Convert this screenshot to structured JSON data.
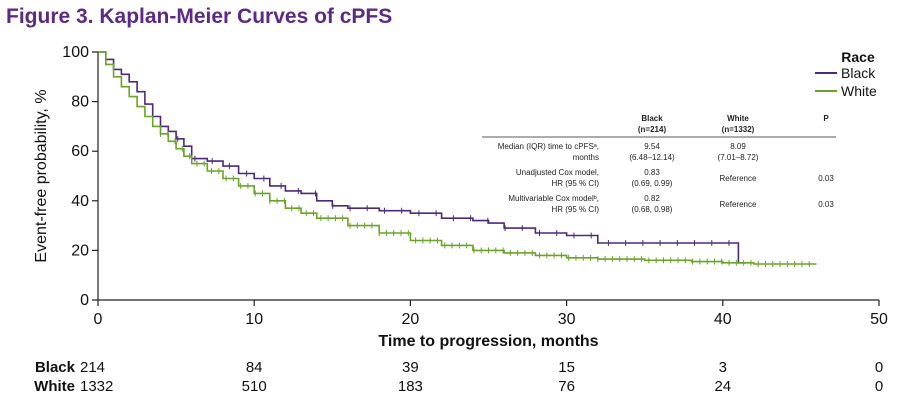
{
  "title": "Figure 3. Kaplan-Meier Curves of cPFS",
  "chart_data": {
    "type": "line",
    "title": "Figure 3. Kaplan-Meier Curves of cPFS",
    "xlabel": "Time to progression, months",
    "ylabel": "Event-free probability, %",
    "xlim": [
      0,
      50
    ],
    "ylim": [
      0,
      100
    ],
    "xticks": [
      0,
      10,
      20,
      30,
      40,
      50
    ],
    "yticks": [
      0,
      20,
      40,
      60,
      80,
      100
    ],
    "grid": false,
    "legend": {
      "title": "Race",
      "position": "top-right"
    },
    "series": [
      {
        "name": "Black",
        "color": "#4b2a7b",
        "x": [
          0,
          0.5,
          1,
          1.5,
          2,
          2.5,
          3,
          3.5,
          4,
          4.5,
          5,
          5.5,
          6,
          7,
          8,
          9,
          10,
          11,
          12,
          13,
          14,
          15,
          16,
          18,
          20,
          22,
          24,
          25,
          26,
          28,
          30,
          32,
          35,
          38,
          40,
          41,
          41.5
        ],
        "y": [
          100,
          97,
          93,
          91,
          88,
          84,
          79,
          74,
          70,
          68,
          65,
          62,
          57,
          56,
          54,
          51,
          49,
          46,
          44,
          43,
          40,
          38,
          37,
          36,
          35,
          33,
          32,
          31,
          29,
          27,
          26,
          23,
          23,
          23,
          23,
          15,
          15
        ]
      },
      {
        "name": "White",
        "color": "#6aa328",
        "x": [
          0,
          0.5,
          1,
          1.5,
          2,
          2.5,
          3,
          3.5,
          4,
          4.5,
          5,
          5.5,
          6,
          7,
          8,
          9,
          10,
          11,
          12,
          13,
          14,
          16,
          18,
          20,
          22,
          24,
          26,
          28,
          30,
          32,
          35,
          38,
          40,
          42,
          44,
          46
        ],
        "y": [
          100,
          95,
          90,
          86,
          82,
          78,
          74,
          70,
          67,
          64,
          61,
          58,
          55,
          52,
          49,
          46,
          43,
          40,
          37,
          35,
          33,
          30,
          27,
          24,
          22,
          20,
          19,
          18,
          17,
          16.5,
          16,
          15.5,
          15,
          14.5,
          14.5,
          14.5
        ]
      }
    ],
    "inset_table": {
      "columns": [
        {
          "name": "Black",
          "sub": "(n=214)"
        },
        {
          "name": "White",
          "sub": "(n=1332)"
        },
        {
          "name": "P",
          "sub": ""
        }
      ],
      "rows": [
        {
          "label1": "Median (IQR) time to cPFSᵃ,",
          "label2": "months",
          "black1": "9.54",
          "black2": "(6.48–12.14)",
          "white1": "8.09",
          "white2": "(7.01–8.72)",
          "p": ""
        },
        {
          "label1": "Unadjusted Cox model,",
          "label2": "HR (95 % CI)",
          "black1": "0.83",
          "black2": "(0.69, 0.99)",
          "white1": "Reference",
          "white2": "",
          "p": "0.03"
        },
        {
          "label1": "Multivariable Cox modelᵇ,",
          "label2": "HR (95 % CI)",
          "black1": "0.82",
          "black2": "(0.68, 0.98)",
          "white1": "Reference",
          "white2": "",
          "p": "0.03"
        }
      ]
    },
    "risk_table": {
      "times": [
        0,
        10,
        20,
        30,
        40,
        50
      ],
      "rows": [
        {
          "name": "Black",
          "values": [
            "214",
            "84",
            "39",
            "15",
            "3",
            "0"
          ]
        },
        {
          "name": "White",
          "values": [
            "1332",
            "510",
            "183",
            "76",
            "24",
            "0"
          ]
        }
      ]
    }
  }
}
